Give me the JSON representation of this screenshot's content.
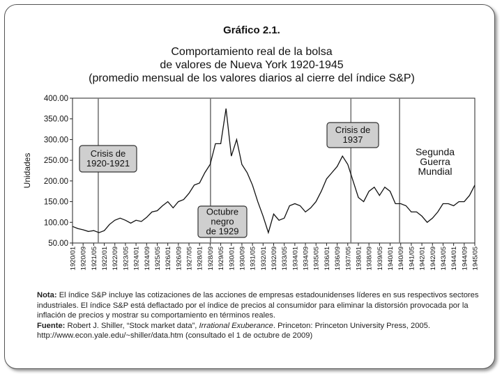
{
  "chart_data": {
    "type": "line",
    "label": "Gráfico 2.1.",
    "title": [
      "Comportamiento real de la bolsa",
      "de valores de Nueva York 1920-1945",
      "(promedio mensual de los valores diarios al cierre del índice S&P)"
    ],
    "y_label": "Unidades",
    "color": "#111111",
    "categories": [
      "1920/01",
      null,
      "1920/09",
      null,
      "1921/05",
      null,
      "1922/01",
      null,
      "1922/09",
      null,
      "1923/05",
      null,
      "1924/01",
      null,
      "1924/09",
      null,
      "1925/05",
      null,
      "1926/01",
      null,
      "1926/09",
      null,
      "1927/05",
      null,
      "1928/01",
      null,
      "1928/09",
      null,
      "1929/05",
      null,
      "1930/01",
      null,
      "1930/09",
      null,
      "1931/05",
      null,
      "1932/01",
      null,
      "1932/09",
      null,
      "1933/05",
      null,
      "1934/01",
      null,
      "1934/09",
      null,
      "1935/05",
      null,
      "1936/01",
      null,
      "1936/09",
      null,
      "1937/05",
      null,
      "1938/01",
      null,
      "1938/09",
      null,
      "1939/05",
      null,
      "1940/01",
      null,
      "1940/09",
      null,
      "1941/05",
      null,
      "1942/01",
      null,
      "1942/09",
      null,
      "1943/05",
      null,
      "1944/01",
      null,
      "1944/09",
      null,
      "1945/05"
    ],
    "values": [
      90,
      85,
      82,
      78,
      80,
      75,
      80,
      95,
      105,
      110,
      105,
      98,
      105,
      102,
      112,
      125,
      128,
      140,
      150,
      135,
      150,
      155,
      170,
      190,
      195,
      220,
      240,
      290,
      290,
      375,
      260,
      300,
      240,
      220,
      190,
      150,
      115,
      75,
      120,
      105,
      110,
      140,
      145,
      140,
      125,
      135,
      150,
      175,
      205,
      220,
      235,
      260,
      240,
      200,
      160,
      150,
      175,
      185,
      165,
      185,
      175,
      145,
      145,
      140,
      125,
      125,
      115,
      100,
      110,
      125,
      145,
      145,
      140,
      150,
      150,
      165,
      190
    ],
    "ylim": [
      50,
      400
    ],
    "yticks": [
      {
        "value": 50,
        "label": "50.00"
      },
      {
        "value": 100,
        "label": "100.00"
      },
      {
        "value": 150,
        "label": "150.00"
      },
      {
        "value": 200,
        "label": "200.00"
      },
      {
        "value": 250,
        "label": "250.00"
      },
      {
        "value": 300,
        "label": "300.00"
      },
      {
        "value": 350,
        "label": "350.00"
      },
      {
        "value": 400,
        "label": "400.00"
      }
    ],
    "annotations": [
      {
        "lines": [
          "Crisis de",
          "1920-1921"
        ],
        "boxed": true
      },
      {
        "lines": [
          "Octubre",
          "negro",
          "de 1929"
        ],
        "boxed": true
      },
      {
        "lines": [
          "Crisis de",
          "1937"
        ],
        "boxed": true
      },
      {
        "lines": [
          "Segunda",
          "Guerra",
          "Mundial"
        ],
        "boxed": false
      }
    ],
    "note": {
      "label": "Nota:",
      "text": "El índice S&P incluye las cotizaciones de las acciones de empresas estadounidenses líderes en sus respectivos sectores industriales. El índice S&P está deflactado por el índice de precios al consumidor para eliminar la distorsión provocada por la inflación de precios y mostrar su comportamiento en términos reales."
    },
    "source": {
      "label": "Fuente:",
      "text_before": "Robert J. Shiller, “Stock market data”,",
      "italic": "Irrational Exuberance",
      "text_after": ". Princeton: Princeton University Press, 2005. http://www.econ.yale.edu/~shiller/data.htm (consultado el 1 de octubre de 2009)"
    }
  }
}
